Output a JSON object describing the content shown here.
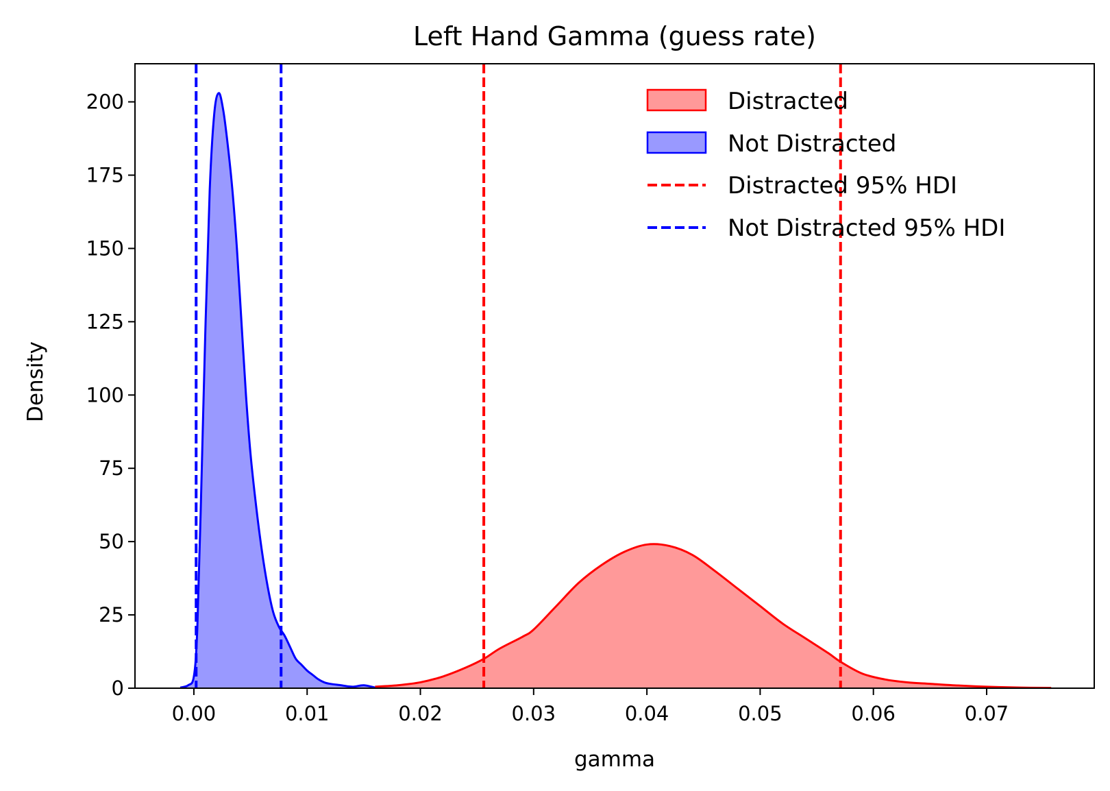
{
  "chart_data": {
    "type": "area",
    "title": "Left Hand Gamma (guess rate)",
    "xlabel": "gamma",
    "ylabel": "Density",
    "xlim": [
      -0.0052,
      0.0795
    ],
    "ylim": [
      0,
      213
    ],
    "x_ticks": [
      0.0,
      0.01,
      0.02,
      0.03,
      0.04,
      0.05,
      0.06,
      0.07
    ],
    "x_tick_labels": [
      "0.00",
      "0.01",
      "0.02",
      "0.03",
      "0.04",
      "0.05",
      "0.06",
      "0.07"
    ],
    "y_ticks": [
      0,
      25,
      50,
      75,
      100,
      125,
      150,
      175,
      200
    ],
    "y_tick_labels": [
      "0",
      "25",
      "50",
      "75",
      "100",
      "125",
      "150",
      "175",
      "200"
    ],
    "grid": false,
    "legend_position": "top-right",
    "series": [
      {
        "name": "Distracted",
        "kind": "density",
        "color": "#ff0000",
        "fill": "#ff9999",
        "x": [
          0.016,
          0.018,
          0.02,
          0.022,
          0.024,
          0.0256,
          0.027,
          0.029,
          0.03,
          0.032,
          0.034,
          0.036,
          0.038,
          0.04,
          0.042,
          0.044,
          0.046,
          0.048,
          0.05,
          0.052,
          0.054,
          0.056,
          0.0571,
          0.059,
          0.061,
          0.063,
          0.065,
          0.067,
          0.07,
          0.073,
          0.0757
        ],
        "y": [
          0.5,
          1,
          2,
          4,
          7,
          10,
          13.5,
          17.5,
          20,
          28,
          36,
          42,
          46.5,
          49,
          48.5,
          45.5,
          40,
          34,
          28,
          22,
          17,
          12,
          9,
          5,
          3,
          2,
          1.5,
          1,
          0.5,
          0.2,
          0.1
        ]
      },
      {
        "name": "Not Distracted",
        "kind": "density",
        "color": "#0000ff",
        "fill": "#9999ff",
        "x": [
          -0.0012,
          -0.0005,
          0.0,
          0.0003,
          0.0006,
          0.001,
          0.0014,
          0.0018,
          0.0022,
          0.0026,
          0.003,
          0.0034,
          0.0038,
          0.0042,
          0.0046,
          0.005,
          0.0055,
          0.006,
          0.0065,
          0.007,
          0.0075,
          0.008,
          0.0085,
          0.009,
          0.0095,
          0.01,
          0.0105,
          0.011,
          0.0115,
          0.012,
          0.013,
          0.014,
          0.015,
          0.016
        ],
        "y": [
          0.2,
          1,
          4,
          20,
          60,
          120,
          170,
          196,
          203,
          197,
          185,
          170,
          150,
          125,
          100,
          80,
          62,
          47,
          35,
          26,
          21,
          18,
          14,
          10,
          8,
          6,
          4.5,
          3,
          2,
          1.5,
          1,
          0.5,
          1,
          0.2
        ]
      }
    ],
    "hdi_lines": [
      {
        "name": "Distracted 95% HDI",
        "color": "#ff0000",
        "values": [
          0.0256,
          0.0571
        ]
      },
      {
        "name": "Not Distracted 95% HDI",
        "color": "#0000ff",
        "values": [
          0.0002,
          0.0077
        ]
      }
    ]
  }
}
